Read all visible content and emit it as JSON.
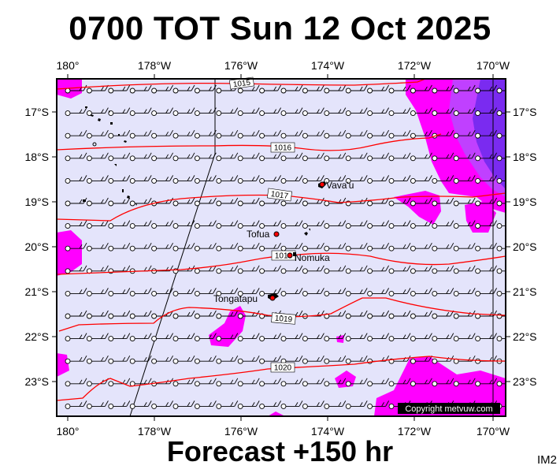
{
  "title": "0700 TOT Sun 12 Oct 2025",
  "footer": "Forecast +150 hr",
  "corner_label": "IM2",
  "copyright": "Copyright metvuw.com",
  "axes": {
    "lon_labels": [
      "180°",
      "178°W",
      "176°W",
      "174°W",
      "172°W",
      "170°W"
    ],
    "lat_labels": [
      "17°S",
      "18°S",
      "19°S",
      "20°S",
      "21°S",
      "22°S",
      "23°S"
    ]
  },
  "places": [
    {
      "name": "Vava'u",
      "lon": -174.0,
      "lat": -18.65
    },
    {
      "name": "Tofua",
      "lon": -175.07,
      "lat": -19.75
    },
    {
      "name": "Nomuka",
      "lon": -174.8,
      "lat": -20.25
    },
    {
      "name": "Tongatapu",
      "lon": -175.2,
      "lat": -21.13
    }
  ],
  "isobars": [
    {
      "label": "1015",
      "label_lon": -175.5,
      "label_lat": -16.5
    },
    {
      "label": "1016",
      "label_lon": -174.9,
      "label_lat": -17.85
    },
    {
      "label": "1017",
      "label_lon": -174.9,
      "label_lat": -18.9
    },
    {
      "label": "1018",
      "label_lon": -174.8,
      "label_lat": -20.25
    },
    {
      "label": "1019",
      "label_lon": -174.5,
      "label_lat": -21.6
    },
    {
      "label": "1020",
      "label_lon": -174.9,
      "label_lat": -22.75
    }
  ],
  "colors": {
    "sea": "#e4e4fb",
    "precip_light": "#ff00ff",
    "precip_heavy": "#9b2eff",
    "isobar": "#ff0000",
    "land": "#000000"
  }
}
